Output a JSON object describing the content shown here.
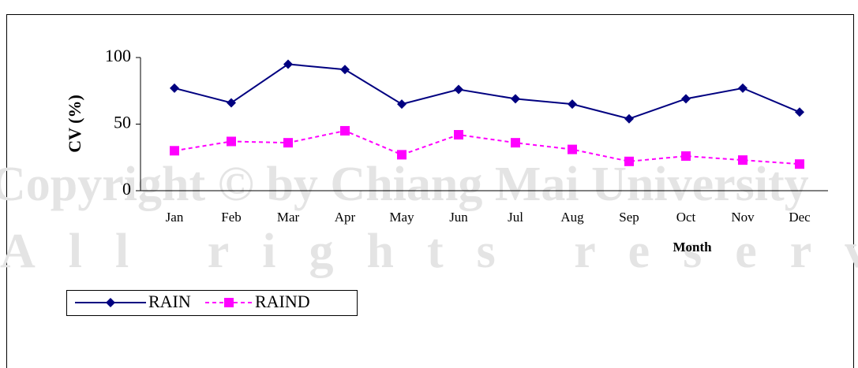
{
  "chart_data": {
    "type": "line",
    "watermark": [
      "Copyright © by Chiang Mai University",
      "All rights reserved"
    ],
    "y_label": "CV (%)",
    "x_label": "Month",
    "categories": [
      "Jan",
      "Feb",
      "Mar",
      "Apr",
      "May",
      "Jun",
      "Jul",
      "Aug",
      "Sep",
      "Oct",
      "Nov",
      "Dec"
    ],
    "series": [
      {
        "name": "RAIN",
        "color": "#000080",
        "marker": "diamond",
        "dash": false,
        "values": [
          77,
          66,
          95,
          91,
          65,
          76,
          69,
          65,
          54,
          69,
          77,
          59
        ]
      },
      {
        "name": "RAIND",
        "color": "#ff00ff",
        "marker": "square",
        "dash": true,
        "values": [
          30,
          37,
          36,
          45,
          27,
          42,
          36,
          31,
          22,
          26,
          23,
          20
        ]
      }
    ],
    "ylim": [
      0,
      100
    ],
    "yticks": [
      0,
      50,
      100
    ],
    "legend": "bottom-left"
  }
}
